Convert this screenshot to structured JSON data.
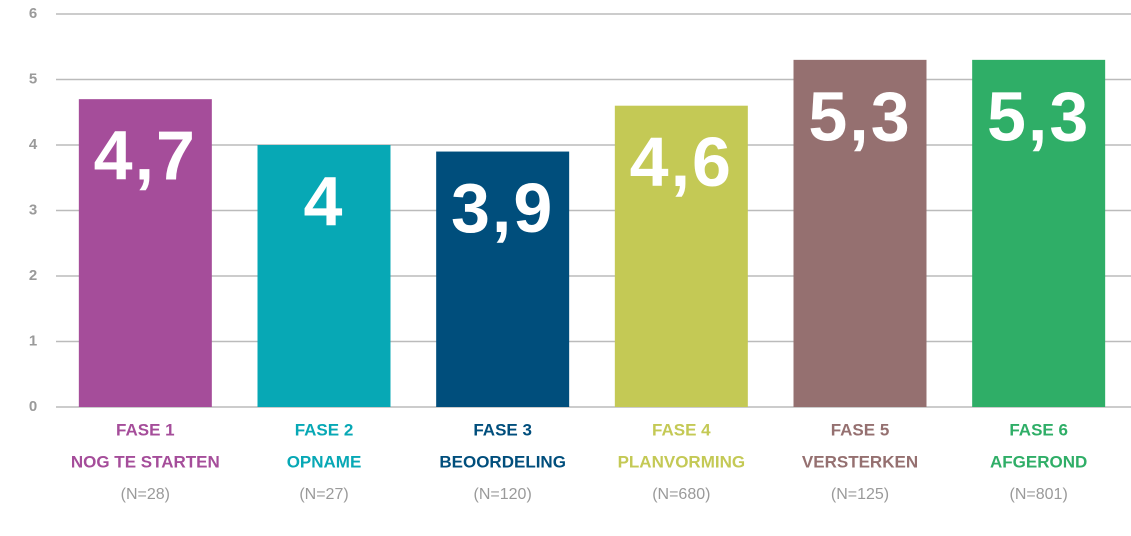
{
  "chart_data": {
    "type": "bar",
    "categories": [
      "FASE 1",
      "FASE 2",
      "FASE 3",
      "FASE 4",
      "FASE 5",
      "FASE 6"
    ],
    "category_names": [
      "NOG TE STARTEN",
      "OPNAME",
      "BEOORDELING",
      "PLANVORMING",
      "VERSTERKEN",
      "AFGEROND"
    ],
    "category_counts": [
      "(N=28)",
      "(N=27)",
      "(N=120)",
      "(N=680)",
      "(N=125)",
      "(N=801)"
    ],
    "values": [
      4.7,
      4,
      3.9,
      4.6,
      5.3,
      5.3
    ],
    "value_labels": [
      "4,7",
      "4",
      "3,9",
      "4,6",
      "5,3",
      "5,3"
    ],
    "colors": [
      "#a54d9a",
      "#07a8b5",
      "#004e7c",
      "#c4c955",
      "#957070",
      "#2fae67"
    ],
    "ylim": [
      0,
      6
    ],
    "yticks": [
      0,
      1,
      2,
      3,
      4,
      5,
      6
    ],
    "grid": true
  }
}
